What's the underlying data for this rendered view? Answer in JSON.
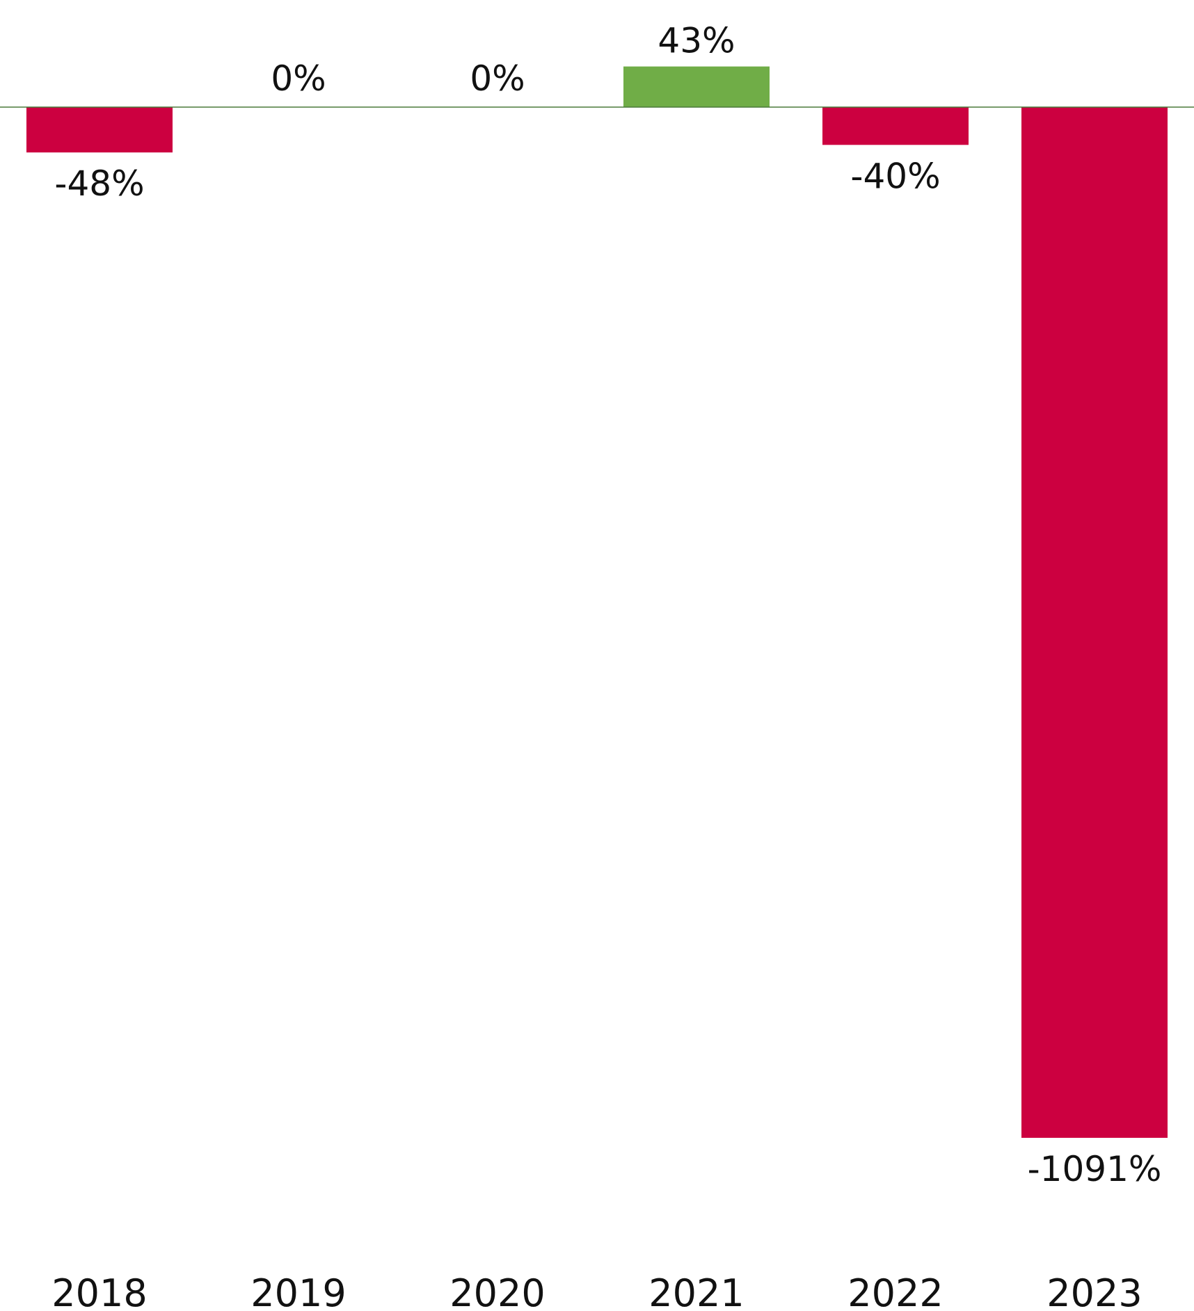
{
  "chart_data": {
    "type": "bar",
    "title": "",
    "xlabel": "",
    "ylabel": "",
    "categories": [
      "2018",
      "2019",
      "2020",
      "2021",
      "2022",
      "2023"
    ],
    "values": [
      -48,
      0,
      0,
      43,
      -40,
      -1091
    ],
    "value_labels": [
      "-48%",
      "0%",
      "0%",
      "43%",
      "-40%",
      "-1091%"
    ],
    "ylim": [
      -1091,
      43
    ],
    "grid": false,
    "legend": "none",
    "colors": {
      "negative": "#CC0040",
      "positive": "#70AD47",
      "baseline": "#4A7A3A"
    }
  }
}
